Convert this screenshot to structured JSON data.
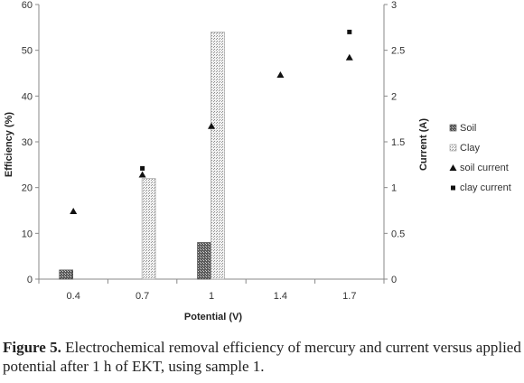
{
  "chart_data": {
    "type": "bar",
    "categories": [
      "0.4",
      "0.7",
      "1",
      "1.4",
      "1.7"
    ],
    "xlabel": "Potential (V)",
    "ylabel": "Efficiency  (%)",
    "ylim": [
      0,
      60
    ],
    "yticks": [
      "0",
      "10",
      "20",
      "30",
      "40",
      "50",
      "60"
    ],
    "y2label": "Current (A)",
    "y2lim": [
      0,
      3
    ],
    "y2ticks": [
      "0",
      "0.5",
      "1",
      "1.5",
      "2",
      "2.5",
      "3"
    ],
    "grid": false,
    "legend_position": "right",
    "bar_series": [
      {
        "name": "Soil",
        "values": [
          2,
          0,
          8,
          0,
          0
        ],
        "pattern": "dense-crosshatch"
      },
      {
        "name": "Clay",
        "values": [
          0,
          22,
          54,
          0,
          0
        ],
        "pattern": "light-dots"
      }
    ],
    "point_series": [
      {
        "name": "soil current",
        "marker": "triangle",
        "axis": "right",
        "values": [
          0.74,
          1.14,
          1.67,
          2.23,
          2.42
        ]
      },
      {
        "name": "clay  current",
        "marker": "square",
        "axis": "right",
        "values": [
          null,
          1.21,
          null,
          null,
          2.7
        ]
      }
    ]
  },
  "caption": {
    "label": "Figure 5.",
    "text": " Electrochemical removal efficiency of mercury and current versus applied potential after 1 h of EKT, using sample 1."
  }
}
